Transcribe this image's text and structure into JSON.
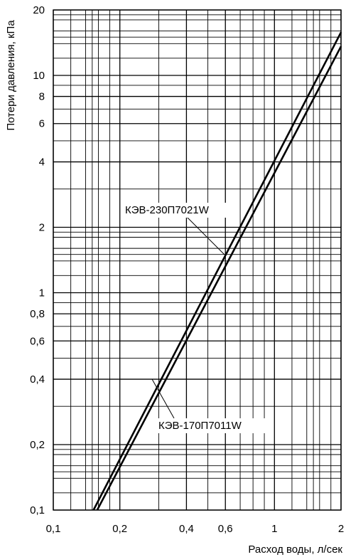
{
  "chart_data": {
    "type": "line",
    "xscale": "log",
    "yscale": "log",
    "xlim": [
      0.1,
      2
    ],
    "ylim": [
      0.1,
      20
    ],
    "xlabel": "Расход воды, л/сек",
    "ylabel": "Потери давления, кПа",
    "grid": true,
    "x_ticks": [
      {
        "value": 0.1,
        "label": "0,1"
      },
      {
        "value": 0.2,
        "label": "0,2"
      },
      {
        "value": 0.4,
        "label": "0,4"
      },
      {
        "value": 0.6,
        "label": "0,6"
      },
      {
        "value": 1,
        "label": "1"
      },
      {
        "value": 2,
        "label": "2"
      }
    ],
    "y_ticks": [
      {
        "value": 0.1,
        "label": "0,1"
      },
      {
        "value": 0.2,
        "label": "0,2"
      },
      {
        "value": 0.4,
        "label": "0,4"
      },
      {
        "value": 0.6,
        "label": "0,6"
      },
      {
        "value": 0.8,
        "label": "0,8"
      },
      {
        "value": 1,
        "label": "1"
      },
      {
        "value": 2,
        "label": "2"
      },
      {
        "value": 4,
        "label": "4"
      },
      {
        "value": 6,
        "label": "6"
      },
      {
        "value": 8,
        "label": "8"
      },
      {
        "value": 10,
        "label": "10"
      },
      {
        "value": 20,
        "label": "20"
      }
    ],
    "x_grid": [
      0.1,
      0.12,
      0.14,
      0.15,
      0.16,
      0.18,
      0.2,
      0.3,
      0.4,
      0.5,
      0.6,
      0.7,
      0.8,
      0.9,
      1,
      1.2,
      1.4,
      1.5,
      1.6,
      1.8,
      2
    ],
    "y_grid": [
      0.1,
      0.12,
      0.14,
      0.15,
      0.16,
      0.18,
      0.19,
      0.2,
      0.3,
      0.4,
      0.5,
      0.6,
      0.7,
      0.8,
      0.9,
      1,
      1.2,
      1.4,
      1.5,
      1.6,
      1.8,
      1.9,
      2,
      3,
      4,
      5,
      6,
      7,
      8,
      9,
      10,
      12,
      14,
      15,
      16,
      18,
      19,
      20
    ],
    "series": [
      {
        "name": "КЭВ-230П7021W",
        "x": [
          0.152,
          2.0
        ],
        "y": [
          0.1,
          15.8
        ]
      },
      {
        "name": "КЭВ-170П7011W",
        "x": [
          0.158,
          2.0
        ],
        "y": [
          0.1,
          13.6
        ]
      }
    ],
    "annotations": [
      {
        "text": "КЭВ-230П7021W",
        "points_to": "КЭВ-230П7021W"
      },
      {
        "text": "КЭВ-170П7011W",
        "points_to": "КЭВ-170П7011W"
      }
    ]
  }
}
